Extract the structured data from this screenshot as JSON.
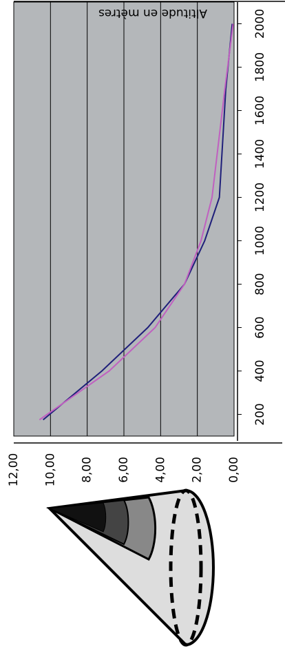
{
  "chart_data": {
    "type": "line",
    "title": "Altitude en mètres",
    "x": [
      175,
      400,
      600,
      800,
      1000,
      1200,
      1700,
      2000
    ],
    "series": [
      {
        "color": "#1f1f7a",
        "values": [
          10.4,
          7.2,
          4.7,
          2.7,
          1.6,
          0.8,
          0.45,
          0.1
        ]
      },
      {
        "color": "#c060c0",
        "values": [
          10.6,
          6.8,
          4.3,
          2.7,
          1.8,
          1.2,
          0.5,
          0.05
        ]
      }
    ],
    "xlim": [
      100,
      2100
    ],
    "xticks": [
      200,
      400,
      600,
      800,
      1000,
      1200,
      1400,
      1600,
      1800,
      2000
    ],
    "ylim": [
      0,
      12
    ],
    "yticks": [
      {
        "value": 0,
        "label": "0,00"
      },
      {
        "value": 2,
        "label": "2,00"
      },
      {
        "value": 4,
        "label": "4,00"
      },
      {
        "value": 6,
        "label": "6,00"
      },
      {
        "value": 8,
        "label": "8,00"
      },
      {
        "value": 10,
        "label": "10,00"
      },
      {
        "value": 12,
        "label": "12,00"
      }
    ],
    "grid": true,
    "background": "#b4b7ba"
  }
}
